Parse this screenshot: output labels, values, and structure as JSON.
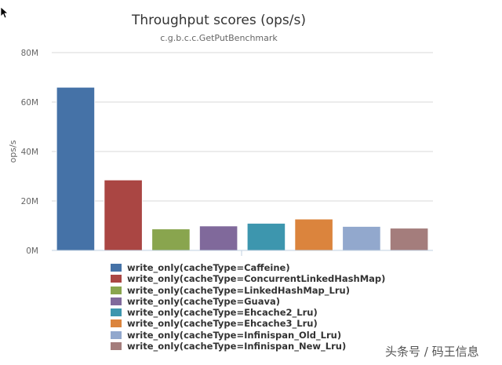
{
  "chart_data": {
    "type": "bar",
    "title": "Throughput scores (ops/s)",
    "subtitle": "c.g.b.c.c.GetPutBenchmark",
    "ylabel": "ops/s",
    "ylim": [
      0,
      80000000
    ],
    "yticks": [
      {
        "value": 0,
        "label": "0M"
      },
      {
        "value": 20000000,
        "label": "20M"
      },
      {
        "value": 40000000,
        "label": "40M"
      },
      {
        "value": 60000000,
        "label": "60M"
      },
      {
        "value": 80000000,
        "label": "80M"
      }
    ],
    "grid": true,
    "legend_position": "bottom",
    "series": [
      {
        "name": "write_only(cacheType=Caffeine)",
        "value": 66000000,
        "color": "#4572a7"
      },
      {
        "name": "write_only(cacheType=ConcurrentLinkedHashMap)",
        "value": 28500000,
        "color": "#aa4643"
      },
      {
        "name": "write_only(cacheType=LinkedHashMap_Lru)",
        "value": 8700000,
        "color": "#89a54e"
      },
      {
        "name": "write_only(cacheType=Guava)",
        "value": 9900000,
        "color": "#80699b"
      },
      {
        "name": "write_only(cacheType=Ehcache2_Lru)",
        "value": 11000000,
        "color": "#3d96ae"
      },
      {
        "name": "write_only(cacheType=Ehcache3_Lru)",
        "value": 12700000,
        "color": "#db843d"
      },
      {
        "name": "write_only(cacheType=Infinispan_Old_Lru)",
        "value": 9700000,
        "color": "#92a8cd"
      },
      {
        "name": "write_only(cacheType=Infinispan_New_Lru)",
        "value": 9000000,
        "color": "#a47d7c"
      }
    ]
  },
  "watermark": "头条号 / 码王信息"
}
